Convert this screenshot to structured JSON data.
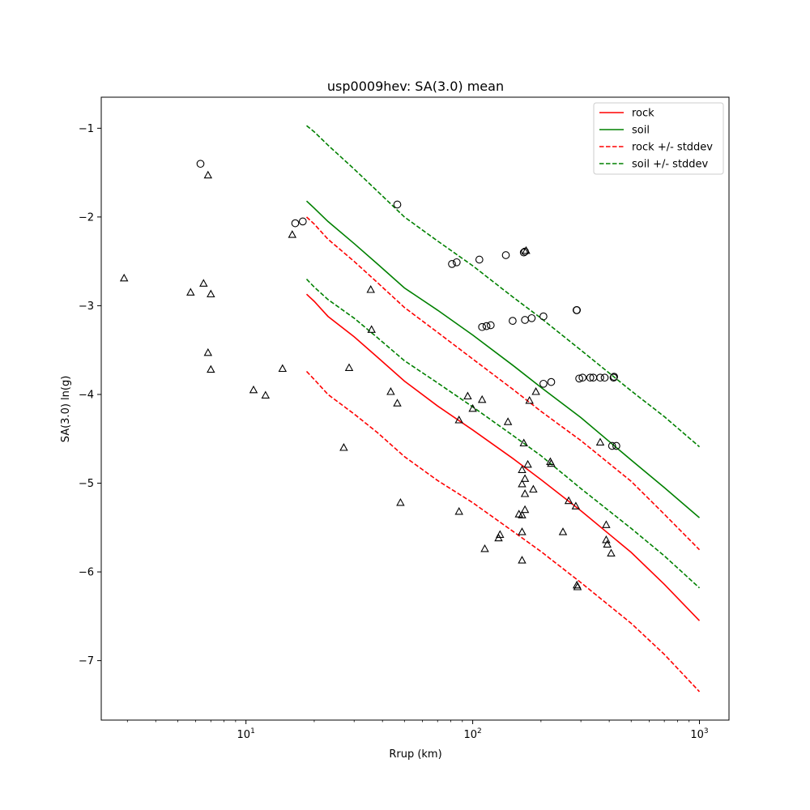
{
  "chart_data": {
    "type": "scatter",
    "title": "usp0009hev: SA(3.0) mean",
    "xlabel": "Rrup (km)",
    "ylabel": "SA(3.0) ln(g)",
    "xscale": "log",
    "xlim": [
      2.3,
      1350
    ],
    "ylim": [
      -7.67,
      -0.65
    ],
    "grid": false,
    "legend_position": "top-right",
    "x_ticks": [
      {
        "value": 10,
        "base": "10",
        "exp": "1"
      },
      {
        "value": 100,
        "base": "10",
        "exp": "2"
      },
      {
        "value": 1000,
        "base": "10",
        "exp": "3"
      }
    ],
    "y_ticks": [
      {
        "value": -1,
        "label": "−1"
      },
      {
        "value": -2,
        "label": "−2"
      },
      {
        "value": -3,
        "label": "−3"
      },
      {
        "value": -4,
        "label": "−4"
      },
      {
        "value": -5,
        "label": "−5"
      },
      {
        "value": -6,
        "label": "−6"
      },
      {
        "value": -7,
        "label": "−7"
      }
    ],
    "lines": [
      {
        "name": "rock",
        "color": "#ff0000",
        "style": "solid",
        "x": [
          18.5,
          20,
          23,
          30,
          38,
          50,
          70,
          100,
          150,
          200,
          300,
          500,
          700,
          1000
        ],
        "y": [
          -2.87,
          -2.95,
          -3.12,
          -3.35,
          -3.58,
          -3.85,
          -4.13,
          -4.4,
          -4.72,
          -4.96,
          -5.31,
          -5.78,
          -6.14,
          -6.55
        ]
      },
      {
        "name": "soil",
        "color": "#008000",
        "style": "solid",
        "x": [
          18.5,
          20,
          23,
          30,
          38,
          50,
          70,
          100,
          150,
          200,
          300,
          500,
          700,
          1000
        ],
        "y": [
          -1.82,
          -1.9,
          -2.05,
          -2.3,
          -2.53,
          -2.8,
          -3.05,
          -3.33,
          -3.67,
          -3.92,
          -4.26,
          -4.74,
          -5.05,
          -5.39
        ]
      },
      {
        "name": "rock +/- stddev",
        "color": "#ff0000",
        "style": "dashed",
        "x": [
          18.5,
          20,
          23,
          30,
          38,
          50,
          70,
          100,
          150,
          200,
          300,
          500,
          700,
          1000
        ],
        "y": [
          -2.0,
          -2.08,
          -2.25,
          -2.5,
          -2.74,
          -3.02,
          -3.3,
          -3.6,
          -3.94,
          -4.19,
          -4.52,
          -4.98,
          -5.35,
          -5.75
        ]
      },
      {
        "name": "",
        "color": "#ff0000",
        "style": "dashed",
        "x": [
          18.5,
          20,
          23,
          30,
          38,
          50,
          70,
          100,
          150,
          200,
          300,
          500,
          700,
          1000
        ],
        "y": [
          -3.74,
          -3.83,
          -4.0,
          -4.22,
          -4.43,
          -4.7,
          -4.97,
          -5.22,
          -5.54,
          -5.77,
          -6.12,
          -6.58,
          -6.93,
          -7.35
        ]
      },
      {
        "name": "soil +/- stddev",
        "color": "#008000",
        "style": "dashed",
        "x": [
          18.5,
          20,
          23,
          30,
          38,
          50,
          70,
          100,
          150,
          200,
          300,
          500,
          700,
          1000
        ],
        "y": [
          -0.97,
          -1.04,
          -1.19,
          -1.46,
          -1.71,
          -2.0,
          -2.27,
          -2.55,
          -2.9,
          -3.14,
          -3.5,
          -3.96,
          -4.25,
          -4.59
        ]
      },
      {
        "name": "",
        "color": "#008000",
        "style": "dashed",
        "x": [
          18.5,
          20,
          23,
          30,
          38,
          50,
          70,
          100,
          150,
          200,
          300,
          500,
          700,
          1000
        ],
        "y": [
          -2.7,
          -2.79,
          -2.93,
          -3.14,
          -3.36,
          -3.62,
          -3.87,
          -4.14,
          -4.46,
          -4.69,
          -5.06,
          -5.51,
          -5.82,
          -6.18
        ]
      }
    ],
    "points": {
      "circles": [
        [
          6.3,
          -1.4
        ],
        [
          16.5,
          -2.07
        ],
        [
          17.8,
          -2.05
        ],
        [
          46.5,
          -1.86
        ],
        [
          81,
          -2.53
        ],
        [
          85,
          -2.51
        ],
        [
          107,
          -2.48
        ],
        [
          140,
          -2.43
        ],
        [
          168,
          -2.4
        ],
        [
          170,
          -2.39
        ],
        [
          110,
          -3.24
        ],
        [
          115,
          -3.23
        ],
        [
          120,
          -3.22
        ],
        [
          150,
          -3.17
        ],
        [
          170,
          -3.16
        ],
        [
          182,
          -3.14
        ],
        [
          205,
          -3.12
        ],
        [
          287,
          -3.05
        ],
        [
          288,
          -3.05
        ],
        [
          205,
          -3.88
        ],
        [
          222,
          -3.86
        ],
        [
          295,
          -3.82
        ],
        [
          305,
          -3.81
        ],
        [
          330,
          -3.81
        ],
        [
          340,
          -3.81
        ],
        [
          365,
          -3.81
        ],
        [
          382,
          -3.81
        ],
        [
          418,
          -3.81
        ],
        [
          420,
          -3.8
        ],
        [
          412,
          -4.58
        ],
        [
          430,
          -4.58
        ]
      ],
      "triangles": [
        [
          2.9,
          -2.69
        ],
        [
          5.7,
          -2.85
        ],
        [
          6.5,
          -2.75
        ],
        [
          7.0,
          -2.87
        ],
        [
          6.8,
          -1.53
        ],
        [
          6.8,
          -3.53
        ],
        [
          7.0,
          -3.72
        ],
        [
          10.8,
          -3.95
        ],
        [
          12.2,
          -4.01
        ],
        [
          14.5,
          -3.71
        ],
        [
          16.0,
          -2.2
        ],
        [
          27,
          -4.6
        ],
        [
          28.5,
          -3.7
        ],
        [
          35.5,
          -2.82
        ],
        [
          35.8,
          -3.27
        ],
        [
          43.5,
          -3.97
        ],
        [
          46.5,
          -4.1
        ],
        [
          48,
          -5.22
        ],
        [
          87,
          -4.29
        ],
        [
          87,
          -5.32
        ],
        [
          95,
          -4.02
        ],
        [
          100,
          -4.16
        ],
        [
          110,
          -4.06
        ],
        [
          113,
          -5.74
        ],
        [
          130,
          -5.62
        ],
        [
          132,
          -5.58
        ],
        [
          143,
          -4.31
        ],
        [
          160,
          -5.35
        ],
        [
          165,
          -4.85
        ],
        [
          165,
          -5.01
        ],
        [
          165,
          -5.36
        ],
        [
          165,
          -5.55
        ],
        [
          165,
          -5.87
        ],
        [
          168,
          -4.55
        ],
        [
          170,
          -4.95
        ],
        [
          170,
          -5.12
        ],
        [
          170,
          -5.3
        ],
        [
          172,
          -2.38
        ],
        [
          175,
          -4.79
        ],
        [
          178,
          -4.07
        ],
        [
          185,
          -5.07
        ],
        [
          190,
          -3.97
        ],
        [
          220,
          -4.76
        ],
        [
          222,
          -4.78
        ],
        [
          250,
          -5.55
        ],
        [
          265,
          -5.2
        ],
        [
          285,
          -5.26
        ],
        [
          288,
          -6.15
        ],
        [
          290,
          -6.17
        ],
        [
          365,
          -4.54
        ],
        [
          388,
          -5.47
        ],
        [
          388,
          -5.64
        ],
        [
          392,
          -5.69
        ],
        [
          408,
          -5.79
        ]
      ]
    },
    "legend": [
      {
        "label": "rock",
        "color": "#ff0000",
        "style": "solid"
      },
      {
        "label": "soil",
        "color": "#008000",
        "style": "solid"
      },
      {
        "label": "rock +/- stddev",
        "color": "#ff0000",
        "style": "dashed"
      },
      {
        "label": "soil +/- stddev",
        "color": "#008000",
        "style": "dashed"
      }
    ]
  }
}
